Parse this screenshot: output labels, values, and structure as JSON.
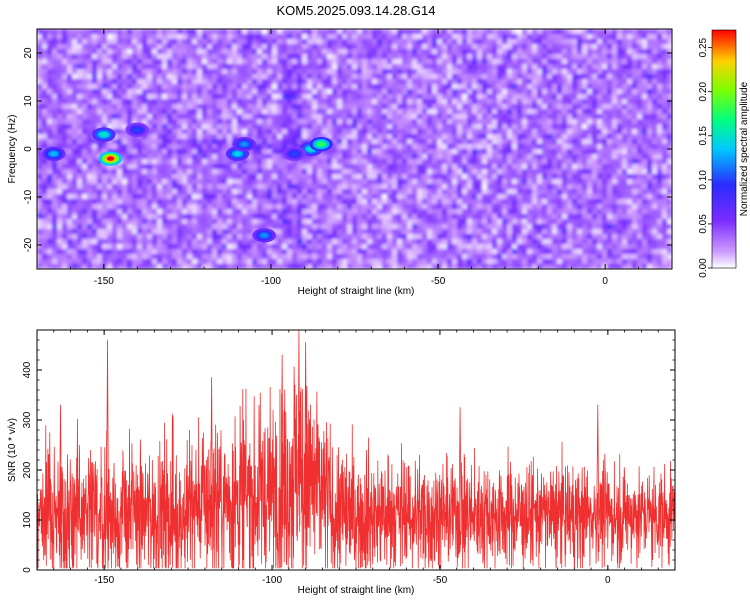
{
  "title": "KOM5.2025.093.14.28.G14",
  "chart_data": [
    {
      "type": "heatmap",
      "title": "KOM5.2025.093.14.28.G14",
      "xlabel": "Height of straight line (km)",
      "ylabel": "Frequency (Hz)",
      "xlim": [
        -170,
        20
      ],
      "ylim": [
        -25,
        25
      ],
      "xticks": [
        -150,
        -100,
        -50,
        0
      ],
      "yticks": [
        -20,
        -10,
        0,
        10,
        20
      ],
      "colorbar": {
        "label": "Normalized spectral amplitude",
        "range": [
          0,
          0.27
        ],
        "ticks": [
          "0.00",
          "0.05",
          "0.10",
          "0.15",
          "0.20",
          "0.25"
        ]
      },
      "hotspots": [
        {
          "x": -150,
          "y": 3,
          "value": 0.15
        },
        {
          "x": -148,
          "y": -2,
          "value": 0.27
        },
        {
          "x": -165,
          "y": -1,
          "value": 0.13
        },
        {
          "x": -140,
          "y": 4,
          "value": 0.1
        },
        {
          "x": -110,
          "y": -1,
          "value": 0.14
        },
        {
          "x": -108,
          "y": 1,
          "value": 0.12
        },
        {
          "x": -102,
          "y": -18,
          "value": 0.12
        },
        {
          "x": -88,
          "y": 0,
          "value": 0.15
        },
        {
          "x": -85,
          "y": 1,
          "value": 0.18
        },
        {
          "x": -93,
          "y": -1,
          "value": 0.1
        }
      ]
    },
    {
      "type": "line",
      "xlabel": "Height of straight line (km)",
      "ylabel": "SNR (10 * v/v)",
      "xlim": [
        -170,
        20
      ],
      "ylim": [
        0,
        480
      ],
      "xticks": [
        -150,
        -100,
        -50,
        0
      ],
      "yticks": [
        0,
        100,
        200,
        300,
        400
      ],
      "series_color": "#f03030",
      "baseline_mean": 110,
      "noise_upper_envelope": [
        {
          "x": -170,
          "y": 290
        },
        {
          "x": -150,
          "y": 300
        },
        {
          "x": -135,
          "y": 300
        },
        {
          "x": -120,
          "y": 330
        },
        {
          "x": -110,
          "y": 340
        },
        {
          "x": -100,
          "y": 350
        },
        {
          "x": -93,
          "y": 420
        },
        {
          "x": -88,
          "y": 380
        },
        {
          "x": -80,
          "y": 290
        },
        {
          "x": -60,
          "y": 270
        },
        {
          "x": -40,
          "y": 250
        },
        {
          "x": -20,
          "y": 250
        },
        {
          "x": 0,
          "y": 240
        },
        {
          "x": 20,
          "y": 230
        }
      ],
      "peaks": [
        {
          "x": -149,
          "y": 460
        },
        {
          "x": -118,
          "y": 385
        },
        {
          "x": -97,
          "y": 430
        },
        {
          "x": -92,
          "y": 480
        },
        {
          "x": -90,
          "y": 455
        },
        {
          "x": -3,
          "y": 330
        },
        {
          "x": -44,
          "y": 325
        },
        {
          "x": -163,
          "y": 330
        }
      ]
    }
  ]
}
